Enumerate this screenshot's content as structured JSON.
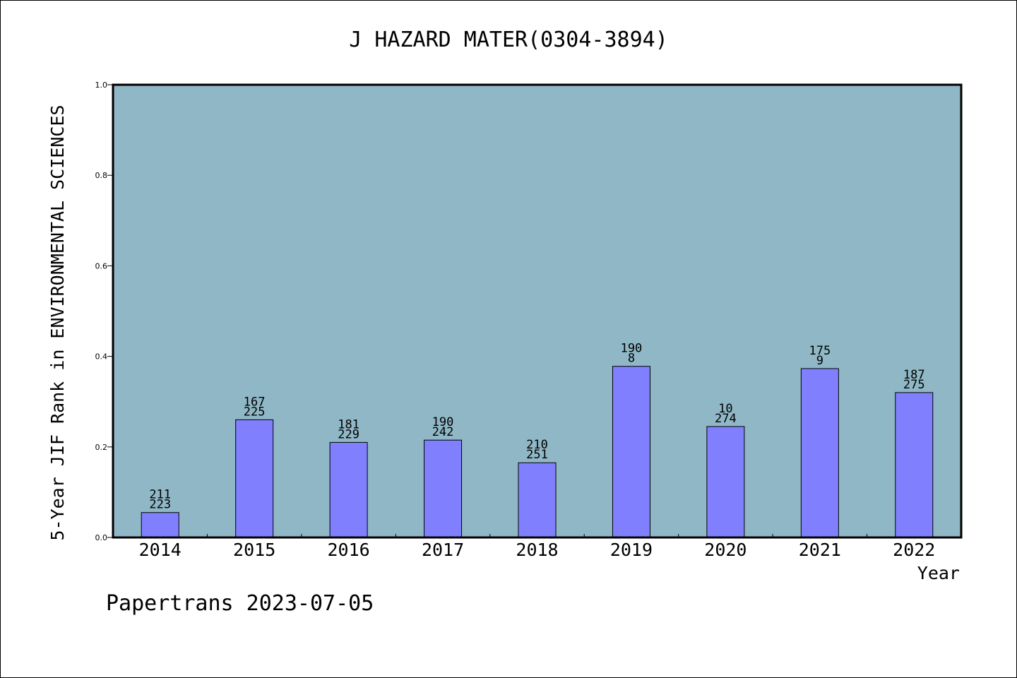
{
  "chart_data": {
    "type": "bar",
    "title": "J HAZARD MATER(0304-3894)",
    "xlabel": "Year",
    "ylabel": "5-Year JIF Rank in ENVIRONMENTAL SCIENCES",
    "ylim": [
      0,
      1.0
    ],
    "yticks": [
      "0.0",
      "0.2",
      "0.4",
      "0.6",
      "0.8",
      "1.0"
    ],
    "grid": false,
    "colors": {
      "plot_bg": "#8fb7c5",
      "bar": "#8080ff",
      "outline": "#000000"
    },
    "categories": [
      "2014",
      "2015",
      "2016",
      "2017",
      "2018",
      "2019",
      "2020",
      "2021",
      "2022"
    ],
    "values": [
      0.055,
      0.26,
      0.21,
      0.215,
      0.165,
      0.378,
      0.245,
      0.373,
      0.32
    ],
    "labels_top": [
      "211",
      "167",
      "181",
      "190",
      "210",
      "190",
      "10",
      "175",
      "187"
    ],
    "labels_bottom": [
      "223",
      "225",
      "229",
      "242",
      "251",
      "8",
      "274",
      "9",
      "275"
    ]
  },
  "footer": {
    "credit": "Papertrans 2023-07-05"
  }
}
